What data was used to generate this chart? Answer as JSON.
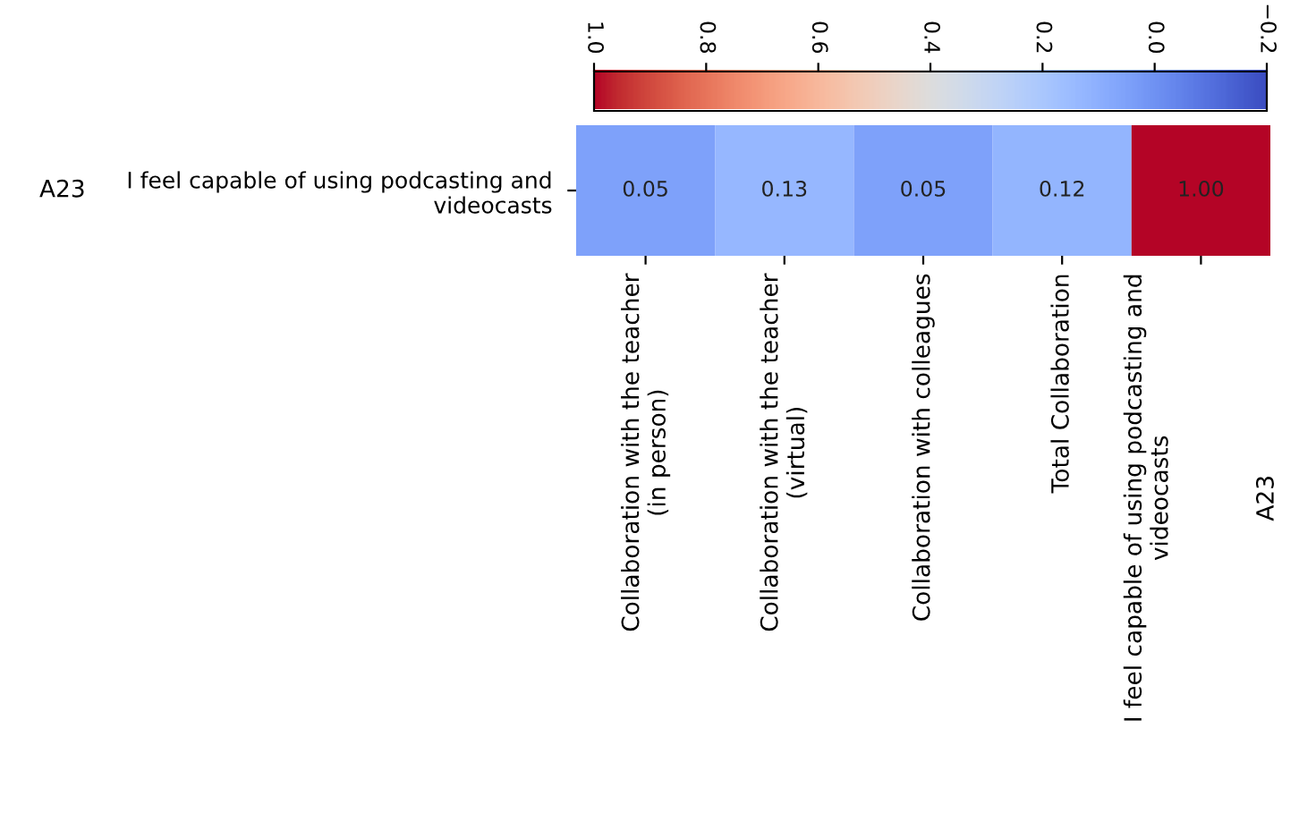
{
  "chart_data": {
    "type": "heatmap",
    "categories": [
      "Collaboration with the teacher\n(in person)",
      "Collaboration with the teacher\n(virtual)",
      "Collaboration with colleagues",
      "Total Collaboration",
      "I feel capable of using podcasting and\nvideocasts\n\n\n\nA23"
    ],
    "y_categories": [
      "I feel capable of using podcasting and\nvideocasts"
    ],
    "y2_categories": [
      "A23"
    ],
    "cells": [
      [
        0.05,
        0.13,
        0.05,
        0.12,
        1.0
      ]
    ],
    "cell_labels": [
      [
        "0.05",
        "0.13",
        "0.05",
        "0.12",
        "1.00"
      ]
    ],
    "clim": [
      1.0,
      -0.2
    ],
    "cticks": [
      {
        "value": 1,
        "label": "1.0"
      },
      0.8,
      0.6,
      0.4,
      0.2,
      {
        "value": 0,
        "label": "0.0"
      },
      {
        "value": -0.2,
        "label": "−0.2"
      }
    ]
  }
}
